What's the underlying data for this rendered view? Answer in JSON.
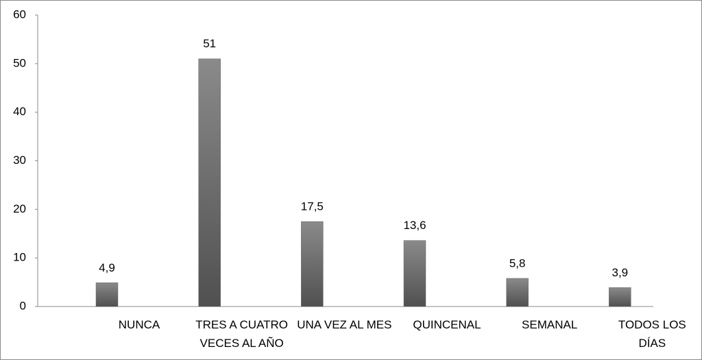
{
  "chart_data": {
    "type": "bar",
    "categories": [
      "NUNCA",
      "TRES A CUATRO VECES AL AÑO",
      "UNA VEZ AL MES",
      "QUINCENAL",
      "SEMANAL",
      "TODOS LOS DÍAS"
    ],
    "values": [
      4.9,
      51,
      17.5,
      13.6,
      5.8,
      3.9
    ],
    "value_labels": [
      "4,9",
      "51",
      "17,5",
      "13,6",
      "5,8",
      "3,9"
    ],
    "color": "#6b6b6b",
    "ylim": [
      0,
      60
    ],
    "yticks": [
      0,
      10,
      20,
      30,
      40,
      50,
      60
    ],
    "grid": false
  }
}
